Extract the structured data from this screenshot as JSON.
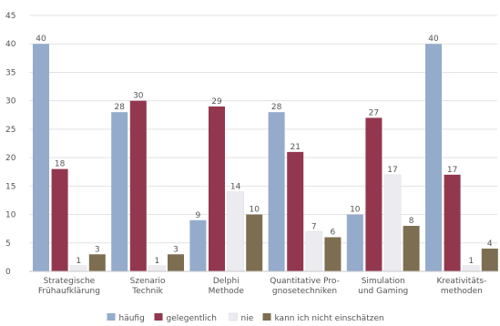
{
  "chart_data": {
    "type": "bar",
    "ylim": [
      0,
      45
    ],
    "yticks": [
      0,
      5,
      10,
      15,
      20,
      25,
      30,
      35,
      40,
      45
    ],
    "grid": true,
    "legend_position": "bottom",
    "categories": [
      [
        "Strategische",
        "Frühaufklärung"
      ],
      [
        "Szenario",
        "Technik"
      ],
      [
        "Delphi",
        "Methode"
      ],
      [
        "Quantitative Pro-",
        "gnosetechniken"
      ],
      [
        "Simulation",
        "und Gaming"
      ],
      [
        "Kreativitäts-",
        "methoden"
      ]
    ],
    "series": [
      {
        "name": "häufig",
        "color": "#94abcc",
        "values": [
          40,
          28,
          9,
          28,
          10,
          40
        ]
      },
      {
        "name": "gelegentlich",
        "color": "#93374f",
        "values": [
          18,
          30,
          29,
          21,
          27,
          17
        ]
      },
      {
        "name": "nie",
        "color": "#ececf0",
        "values": [
          1,
          1,
          14,
          7,
          17,
          1
        ]
      },
      {
        "name": "kann ich nicht einschätzen",
        "color": "#7d6e51",
        "values": [
          3,
          3,
          10,
          6,
          8,
          4
        ]
      }
    ]
  }
}
